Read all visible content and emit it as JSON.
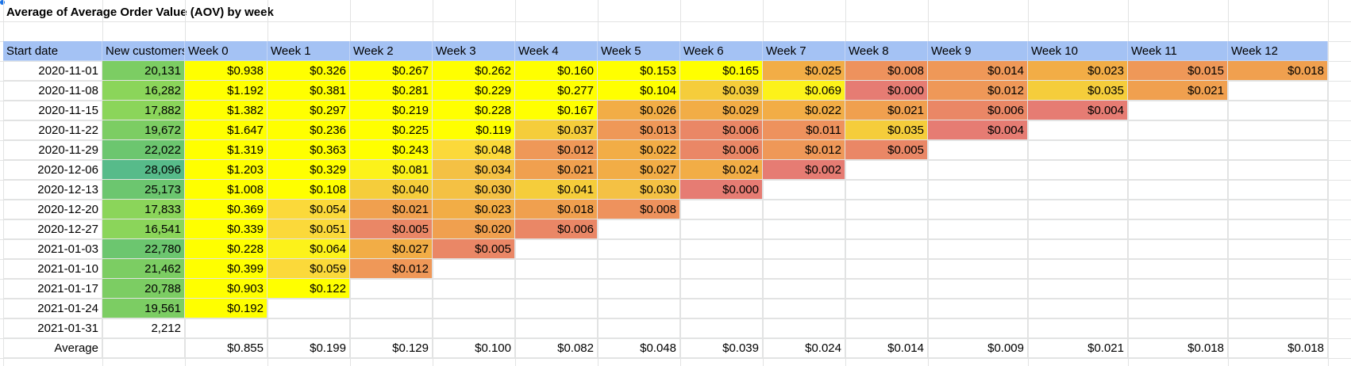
{
  "title": "Average of Average Order Value (AOV) by week",
  "colors": {
    "header_bg": "#a4c2f4",
    "yellow": "#ffff00",
    "gold": "#fbd93a",
    "orange": "#f2ad46",
    "orange_red": "#ee925d",
    "red": "#e67c73",
    "green": "#7fd05f",
    "teal": "#57bb8a"
  },
  "headers": [
    "Start date",
    "New customers",
    "Week 0",
    "Week 1",
    "Week 2",
    "Week 3",
    "Week 4",
    "Week 5",
    "Week 6",
    "Week 7",
    "Week 8",
    "Week 9",
    "Week 10",
    "Week 11",
    "Week 12"
  ],
  "rows": [
    {
      "date": "2020-11-01",
      "customers": "20,131",
      "values": [
        "$0.938",
        "$0.326",
        "$0.267",
        "$0.262",
        "$0.160",
        "$0.153",
        "$0.165",
        "$0.025",
        "$0.008",
        "$0.014",
        "$0.023",
        "$0.015",
        "$0.018"
      ]
    },
    {
      "date": "2020-11-08",
      "customers": "16,282",
      "values": [
        "$1.192",
        "$0.381",
        "$0.281",
        "$0.229",
        "$0.277",
        "$0.104",
        "$0.039",
        "$0.069",
        "$0.000",
        "$0.012",
        "$0.035",
        "$0.021",
        ""
      ]
    },
    {
      "date": "2020-11-15",
      "customers": "17,882",
      "values": [
        "$1.382",
        "$0.297",
        "$0.219",
        "$0.228",
        "$0.167",
        "$0.026",
        "$0.029",
        "$0.022",
        "$0.021",
        "$0.006",
        "$0.004",
        "",
        ""
      ]
    },
    {
      "date": "2020-11-22",
      "customers": "19,672",
      "values": [
        "$1.647",
        "$0.236",
        "$0.225",
        "$0.119",
        "$0.037",
        "$0.013",
        "$0.006",
        "$0.011",
        "$0.035",
        "$0.004",
        "",
        "",
        ""
      ]
    },
    {
      "date": "2020-11-29",
      "customers": "22,022",
      "values": [
        "$1.319",
        "$0.363",
        "$0.243",
        "$0.048",
        "$0.012",
        "$0.022",
        "$0.006",
        "$0.012",
        "$0.005",
        "",
        "",
        "",
        ""
      ]
    },
    {
      "date": "2020-12-06",
      "customers": "28,096",
      "values": [
        "$1.203",
        "$0.329",
        "$0.081",
        "$0.034",
        "$0.021",
        "$0.027",
        "$0.024",
        "$0.002",
        "",
        "",
        "",
        "",
        ""
      ]
    },
    {
      "date": "2020-12-13",
      "customers": "25,173",
      "values": [
        "$1.008",
        "$0.108",
        "$0.040",
        "$0.030",
        "$0.041",
        "$0.030",
        "$0.000",
        "",
        "",
        "",
        "",
        "",
        ""
      ]
    },
    {
      "date": "2020-12-20",
      "customers": "17,833",
      "values": [
        "$0.369",
        "$0.054",
        "$0.021",
        "$0.023",
        "$0.018",
        "$0.008",
        "",
        "",
        "",
        "",
        "",
        "",
        ""
      ]
    },
    {
      "date": "2020-12-27",
      "customers": "16,541",
      "values": [
        "$0.339",
        "$0.051",
        "$0.005",
        "$0.020",
        "$0.006",
        "",
        "",
        "",
        "",
        "",
        "",
        "",
        ""
      ]
    },
    {
      "date": "2021-01-03",
      "customers": "22,780",
      "values": [
        "$0.228",
        "$0.064",
        "$0.027",
        "$0.005",
        "",
        "",
        "",
        "",
        "",
        "",
        "",
        "",
        ""
      ]
    },
    {
      "date": "2021-01-10",
      "customers": "21,462",
      "values": [
        "$0.399",
        "$0.059",
        "$0.012",
        "",
        "",
        "",
        "",
        "",
        "",
        "",
        "",
        "",
        ""
      ]
    },
    {
      "date": "2021-01-17",
      "customers": "20,788",
      "values": [
        "$0.903",
        "$0.122",
        "",
        "",
        "",
        "",
        "",
        "",
        "",
        "",
        "",
        "",
        ""
      ]
    },
    {
      "date": "2021-01-24",
      "customers": "19,561",
      "values": [
        "$0.192",
        "",
        "",
        "",
        "",
        "",
        "",
        "",
        "",
        "",
        "",
        "",
        ""
      ]
    },
    {
      "date": "2021-01-31",
      "customers": "2,212",
      "values": [
        "",
        "",
        "",
        "",
        "",
        "",
        "",
        "",
        "",
        "",
        "",
        "",
        ""
      ]
    }
  ],
  "average": {
    "label": "Average",
    "values": [
      "$0.855",
      "$0.199",
      "$0.129",
      "$0.100",
      "$0.082",
      "$0.048",
      "$0.039",
      "$0.024",
      "$0.014",
      "$0.009",
      "$0.021",
      "$0.018",
      "$0.018"
    ]
  }
}
